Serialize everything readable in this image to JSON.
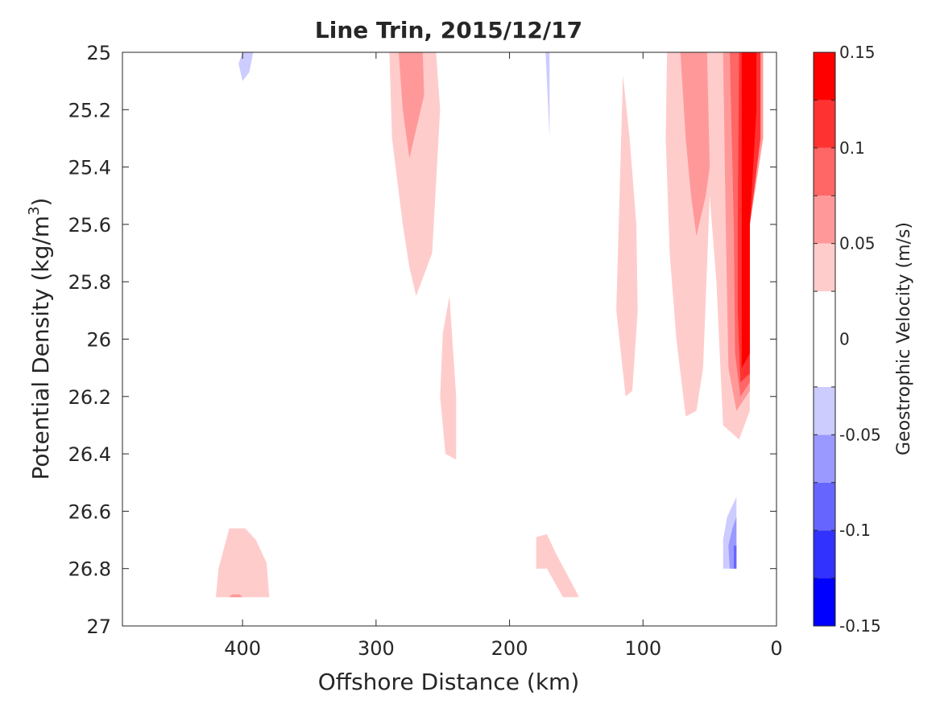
{
  "chart_data": {
    "type": "filled-contour",
    "title": "Line Trin, 2015/12/17",
    "xlabel": "Offshore Distance (km)",
    "ylabel": "Potential Density (kg/m",
    "ylabel_superscript": "3",
    "ylabel_close": ")",
    "xlim": [
      0,
      490
    ],
    "x_reversed": true,
    "ylim": [
      25,
      27
    ],
    "y_reversed": true,
    "x_ticks": [
      400,
      300,
      200,
      100,
      0
    ],
    "x_tick_labels": [
      "400",
      "300",
      "200",
      "100",
      "0"
    ],
    "y_ticks": [
      25,
      25.2,
      25.4,
      25.6,
      25.8,
      26,
      26.2,
      26.4,
      26.6,
      26.8,
      27
    ],
    "y_tick_labels": [
      "25",
      "25.2",
      "25.4",
      "25.6",
      "25.8",
      "26",
      "26.2",
      "26.4",
      "26.6",
      "26.8",
      "27"
    ],
    "grid": false,
    "colorbar": {
      "label": "Geostrophic Velocity (m/s)",
      "range": [
        -0.15,
        0.15
      ],
      "tick_values": [
        0.15,
        0.1,
        0.05,
        0,
        -0.05,
        -0.1,
        -0.15
      ],
      "tick_labels": [
        "0.15",
        "0.1",
        "0.05",
        "0",
        "-0.05",
        "-0.1",
        "-0.15"
      ],
      "levels": [
        -0.15,
        -0.125,
        -0.1,
        -0.075,
        -0.05,
        -0.025,
        0.025,
        0.05,
        0.075,
        0.1,
        0.125,
        0.15
      ],
      "colors": [
        "#0000ff",
        "#3232ff",
        "#6666ff",
        "#9999ff",
        "#ccccff",
        "#ffffff",
        "#ffcccc",
        "#ff9999",
        "#ff6666",
        "#ff3232",
        "#ff0000"
      ]
    },
    "regions": [
      {
        "level": -0.025,
        "points": [
          [
            465,
            25
          ],
          [
            452,
            25
          ],
          [
            460,
            25.08
          ]
        ]
      },
      {
        "level": -0.025,
        "points": [
          [
            420,
            25
          ],
          [
            374,
            25
          ],
          [
            374,
            25.2
          ],
          [
            376,
            25.5
          ],
          [
            380,
            25.6
          ],
          [
            390,
            25.75
          ],
          [
            400,
            25.82
          ],
          [
            408,
            25.7
          ],
          [
            415,
            25.45
          ],
          [
            420,
            25.32
          ]
        ]
      },
      {
        "level": -0.05,
        "points": [
          [
            400,
            25
          ],
          [
            392,
            25
          ],
          [
            395,
            25.07
          ],
          [
            400,
            25.1
          ],
          [
            403,
            25.04
          ]
        ]
      },
      {
        "level": -0.05,
        "points": [
          [
            400,
            25
          ],
          [
            399.5,
            25
          ],
          [
            399.5,
            25.02
          ],
          [
            400,
            25.02
          ]
        ]
      },
      {
        "level": -0.025,
        "points": [
          [
            232,
            25
          ],
          [
            228,
            25
          ],
          [
            230,
            25.03
          ]
        ]
      },
      {
        "level": -0.025,
        "points": [
          [
            190,
            25
          ],
          [
            160,
            25
          ],
          [
            157,
            25.3
          ],
          [
            155,
            25.8
          ],
          [
            150,
            26.32
          ],
          [
            160,
            26.28
          ],
          [
            170,
            26.1
          ],
          [
            180,
            25.6
          ],
          [
            186,
            25.2
          ]
        ]
      },
      {
        "level": -0.05,
        "points": [
          [
            173,
            25
          ],
          [
            170,
            25
          ],
          [
            170,
            25.3
          ],
          [
            172,
            25.1
          ]
        ]
      },
      {
        "level": 0.025,
        "points": [
          [
            290,
            25
          ],
          [
            255,
            25
          ],
          [
            252,
            25.2
          ],
          [
            258,
            25.7
          ],
          [
            270,
            25.85
          ],
          [
            275,
            25.75
          ],
          [
            280,
            25.6
          ],
          [
            288,
            25.3
          ]
        ]
      },
      {
        "level": 0.05,
        "points": [
          [
            283,
            25
          ],
          [
            265,
            25
          ],
          [
            264,
            25.15
          ],
          [
            275,
            25.37
          ],
          [
            280,
            25.2
          ]
        ]
      },
      {
        "level": 0.025,
        "points": [
          [
            245,
            25.85
          ],
          [
            240,
            26.2
          ],
          [
            240,
            26.42
          ],
          [
            248,
            26.4
          ],
          [
            252,
            26.2
          ],
          [
            250,
            25.98
          ]
        ]
      },
      {
        "level": 0.025,
        "points": [
          [
            115,
            25.08
          ],
          [
            120,
            25.9
          ],
          [
            113,
            26.2
          ],
          [
            108,
            26.18
          ],
          [
            104,
            25.9
          ],
          [
            105,
            25.6
          ],
          [
            110,
            25.3
          ]
        ]
      },
      {
        "level": 0.025,
        "points": [
          [
            82,
            25
          ],
          [
            10,
            25
          ],
          [
            10,
            25.3
          ],
          [
            20,
            25.6
          ],
          [
            20,
            26.25
          ],
          [
            28,
            26.35
          ],
          [
            40,
            26.3
          ],
          [
            45,
            25.8
          ],
          [
            50,
            25.5
          ],
          [
            55,
            26.1
          ],
          [
            60,
            26.25
          ],
          [
            68,
            26.27
          ],
          [
            75,
            26
          ],
          [
            80,
            25.7
          ],
          [
            83,
            25.3
          ]
        ]
      },
      {
        "level": 0.05,
        "points": [
          [
            72,
            25
          ],
          [
            52,
            25
          ],
          [
            50,
            25.4
          ],
          [
            53,
            25.5
          ],
          [
            60,
            25.64
          ],
          [
            64,
            25.5
          ],
          [
            68,
            25.3
          ]
        ]
      },
      {
        "level": 0.05,
        "points": [
          [
            40,
            25
          ],
          [
            10,
            25
          ],
          [
            10,
            25.3
          ],
          [
            20,
            25.6
          ],
          [
            20,
            26.18
          ],
          [
            30,
            26.25
          ],
          [
            36,
            26.1
          ],
          [
            38,
            25.6
          ]
        ]
      },
      {
        "level": 0.075,
        "points": [
          [
            35,
            25
          ],
          [
            12,
            25
          ],
          [
            12,
            25.3
          ],
          [
            20,
            25.6
          ],
          [
            20,
            26.15
          ],
          [
            27,
            26.2
          ],
          [
            31,
            26.05
          ],
          [
            32,
            25.6
          ]
        ]
      },
      {
        "level": 0.1,
        "points": [
          [
            28,
            25
          ],
          [
            12,
            25
          ],
          [
            12,
            25.3
          ],
          [
            20,
            25.6
          ],
          [
            20,
            26.12
          ],
          [
            27,
            26.15
          ],
          [
            29,
            25.9
          ],
          [
            29,
            25.6
          ]
        ]
      },
      {
        "level": 0.125,
        "points": [
          [
            26,
            25
          ],
          [
            15,
            25
          ],
          [
            15,
            25.2
          ],
          [
            20,
            25.6
          ],
          [
            20,
            26.05
          ],
          [
            26,
            26.1
          ],
          [
            26,
            25.6
          ]
        ]
      },
      {
        "level": 0.025,
        "points": [
          [
            420,
            26.9
          ],
          [
            380,
            26.9
          ],
          [
            382,
            26.78
          ],
          [
            390,
            26.7
          ],
          [
            398,
            26.66
          ],
          [
            410,
            26.66
          ],
          [
            418,
            26.8
          ]
        ]
      },
      {
        "level": 0.05,
        "points": [
          [
            410,
            26.9
          ],
          [
            400,
            26.9
          ],
          [
            402,
            26.89
          ],
          [
            408,
            26.89
          ]
        ]
      },
      {
        "level": 0.025,
        "points": [
          [
            180,
            26.69
          ],
          [
            172,
            26.68
          ],
          [
            165,
            26.75
          ],
          [
            150,
            26.88
          ],
          [
            148,
            26.9
          ],
          [
            160,
            26.9
          ],
          [
            172,
            26.8
          ],
          [
            180,
            26.8
          ]
        ]
      },
      {
        "level": -0.025,
        "points": [
          [
            290,
            26.9
          ],
          [
            258,
            26.9
          ],
          [
            262,
            26.8
          ],
          [
            270,
            26.66
          ],
          [
            278,
            26.55
          ],
          [
            286,
            26.62
          ],
          [
            288,
            26.8
          ]
        ]
      },
      {
        "level": -0.025,
        "points": [
          [
            83,
            26.9
          ],
          [
            80,
            26.8
          ],
          [
            75,
            26.68
          ],
          [
            65,
            26.6
          ],
          [
            58,
            26.58
          ],
          [
            52,
            26.66
          ],
          [
            45,
            26.63
          ],
          [
            35,
            26.57
          ],
          [
            30,
            26.5
          ],
          [
            30,
            26.8
          ],
          [
            78,
            26.8
          ]
        ]
      },
      {
        "level": -0.05,
        "points": [
          [
            40,
            26.8
          ],
          [
            30,
            26.8
          ],
          [
            30,
            26.55
          ],
          [
            37,
            26.62
          ],
          [
            40,
            26.7
          ]
        ]
      },
      {
        "level": -0.075,
        "points": [
          [
            35,
            26.8
          ],
          [
            30,
            26.8
          ],
          [
            30,
            26.62
          ],
          [
            33,
            26.66
          ],
          [
            36,
            26.72
          ]
        ]
      },
      {
        "level": -0.1,
        "points": [
          [
            32,
            26.8
          ],
          [
            30,
            26.8
          ],
          [
            30,
            26.72
          ],
          [
            32,
            26.72
          ]
        ]
      }
    ]
  }
}
